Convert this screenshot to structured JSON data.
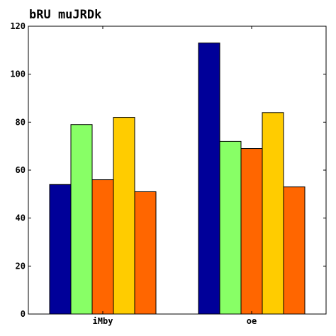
{
  "chart_data": {
    "type": "bar",
    "title": "bRU muJRDk",
    "xlabel": "",
    "ylabel": "",
    "categories": [
      "iMby",
      "oe"
    ],
    "ylim": [
      0,
      120
    ],
    "yticks": [
      0,
      20,
      40,
      60,
      80,
      100,
      120
    ],
    "grid": false,
    "series": [
      {
        "color": "#000099",
        "values": [
          54,
          113
        ]
      },
      {
        "color": "#88ff66",
        "values": [
          79,
          72
        ]
      },
      {
        "color": "#ff6600",
        "values": [
          56,
          69
        ]
      },
      {
        "color": "#ffcc00",
        "values": [
          82,
          84
        ]
      },
      {
        "color": "#ff6600",
        "values": [
          51,
          53
        ]
      }
    ]
  }
}
